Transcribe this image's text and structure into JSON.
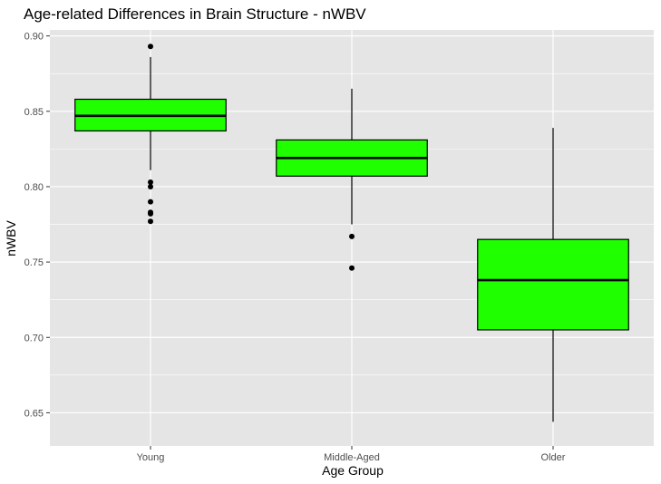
{
  "chart_data": {
    "type": "box",
    "title": "Age-related Differences in Brain Structure - nWBV",
    "xlabel": "Age Group",
    "ylabel": "nWBV",
    "ylim": [
      0.628,
      0.904
    ],
    "yticks": [
      "0.65",
      "0.70",
      "0.75",
      "0.80",
      "0.85",
      "0.90"
    ],
    "grid": true,
    "categories": [
      "Young",
      "Middle-Aged",
      "Older"
    ],
    "boxes": [
      {
        "category": "Young",
        "whisker_low": 0.811,
        "q1": 0.837,
        "median": 0.847,
        "q3": 0.858,
        "whisker_high": 0.886,
        "outliers": [
          0.893,
          0.803,
          0.8,
          0.79,
          0.783,
          0.782,
          0.777
        ]
      },
      {
        "category": "Middle-Aged",
        "whisker_low": 0.775,
        "q1": 0.807,
        "median": 0.819,
        "q3": 0.831,
        "whisker_high": 0.865,
        "outliers": [
          0.767,
          0.746
        ]
      },
      {
        "category": "Older",
        "whisker_low": 0.644,
        "q1": 0.705,
        "median": 0.738,
        "q3": 0.765,
        "whisker_high": 0.839,
        "outliers": []
      }
    ],
    "colors": {
      "box_fill": "#1fff00",
      "box_line": "#000000",
      "panel": "#e5e5e5",
      "grid": "#ffffff"
    }
  }
}
